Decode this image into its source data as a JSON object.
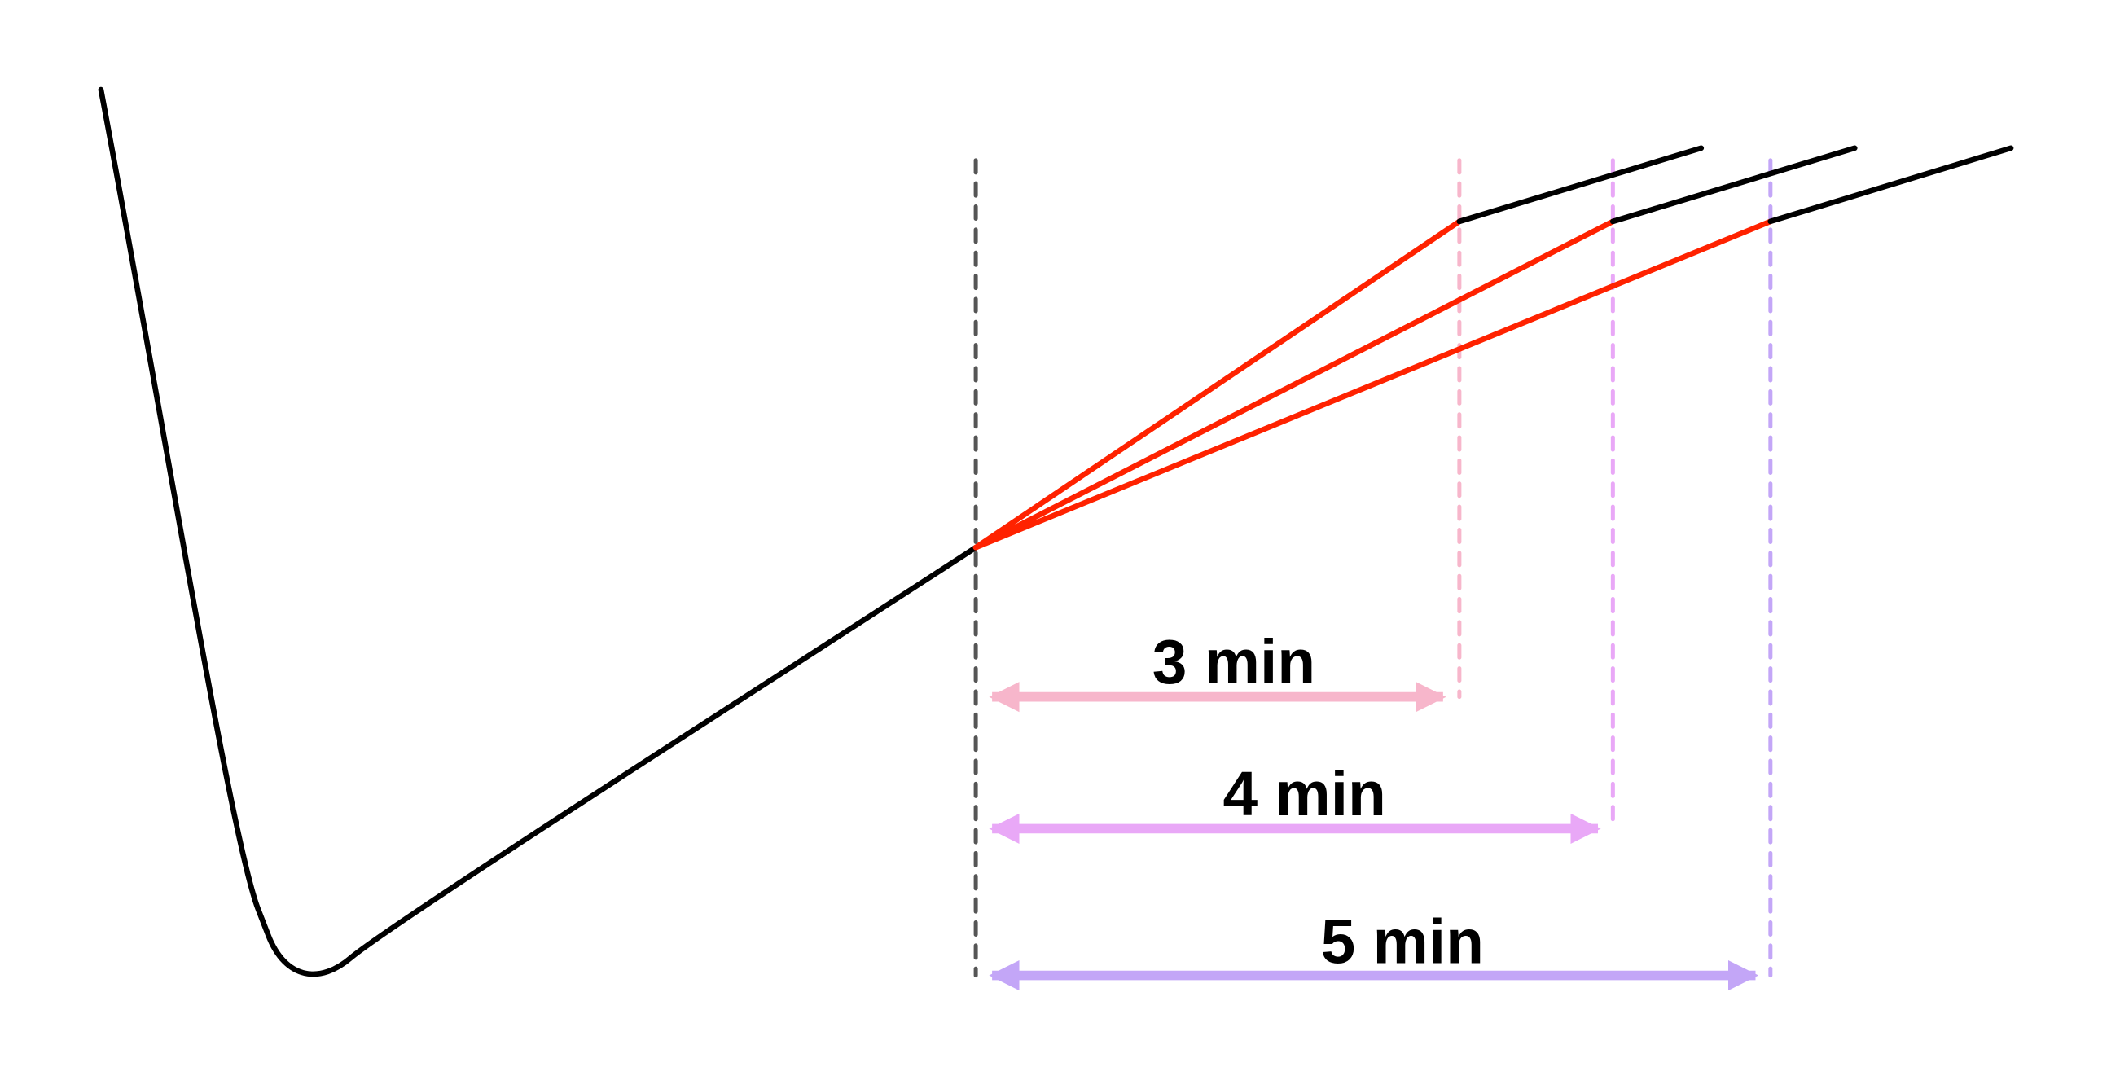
{
  "labels": {
    "interval_3": "3 min",
    "interval_4": "4 min",
    "interval_5": "5 min"
  },
  "colors": {
    "curve": "#000000",
    "fan_lines": "#ff2200",
    "start_marker": "#555555",
    "interval_3": "#f7b6cb",
    "interval_4": "#e9a8f7",
    "interval_5": "#c3a6f7"
  }
}
